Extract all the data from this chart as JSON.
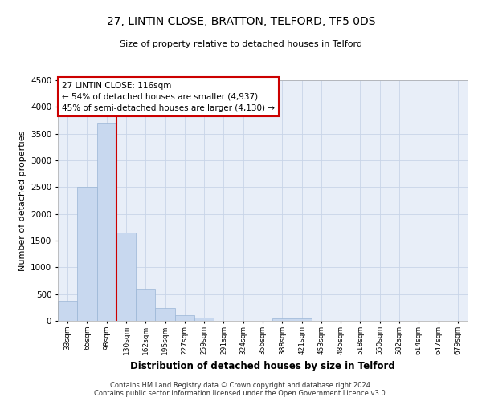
{
  "title": "27, LINTIN CLOSE, BRATTON, TELFORD, TF5 0DS",
  "subtitle": "Size of property relative to detached houses in Telford",
  "xlabel": "Distribution of detached houses by size in Telford",
  "ylabel": "Number of detached properties",
  "categories": [
    "33sqm",
    "65sqm",
    "98sqm",
    "130sqm",
    "162sqm",
    "195sqm",
    "227sqm",
    "259sqm",
    "291sqm",
    "324sqm",
    "356sqm",
    "388sqm",
    "421sqm",
    "453sqm",
    "485sqm",
    "518sqm",
    "550sqm",
    "582sqm",
    "614sqm",
    "647sqm",
    "679sqm"
  ],
  "values": [
    380,
    2500,
    3700,
    1650,
    600,
    240,
    100,
    60,
    0,
    0,
    0,
    50,
    50,
    0,
    0,
    0,
    0,
    0,
    0,
    0,
    0
  ],
  "bar_color": "#c8d8ef",
  "bar_edge_color": "#9ab5d5",
  "vline_x_index": 2.5,
  "vline_color": "#cc0000",
  "ylim": [
    0,
    4500
  ],
  "yticks": [
    0,
    500,
    1000,
    1500,
    2000,
    2500,
    3000,
    3500,
    4000,
    4500
  ],
  "annotation_line1": "27 LINTIN CLOSE: 116sqm",
  "annotation_line2": "← 54% of detached houses are smaller (4,937)",
  "annotation_line3": "45% of semi-detached houses are larger (4,130) →",
  "annotation_box_color": "#ffffff",
  "annotation_box_edge_color": "#cc0000",
  "grid_color": "#c8d4e8",
  "background_color": "#ffffff",
  "plot_bg_color": "#e8eef8",
  "footer_line1": "Contains HM Land Registry data © Crown copyright and database right 2024.",
  "footer_line2": "Contains public sector information licensed under the Open Government Licence v3.0."
}
